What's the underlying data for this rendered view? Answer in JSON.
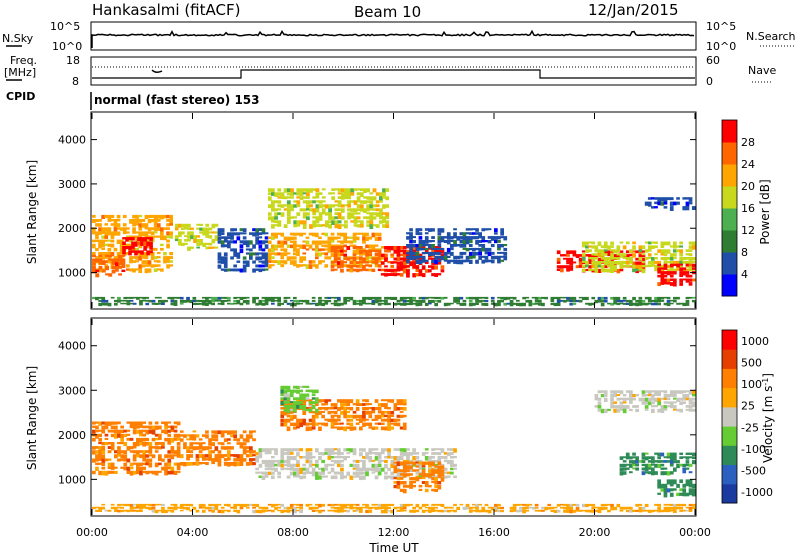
{
  "header": {
    "title": "Hankasalmi (fitACF)",
    "beam": "Beam 10",
    "date": "12/Jan/2015"
  },
  "top_panels": {
    "nsky_label": "N.Sky",
    "nsearch_label": "N.Search",
    "ticks_left_1": [
      "10^5",
      "10^0"
    ],
    "ticks_right_1": [
      "10^5",
      "10^0"
    ],
    "freq_label": "Freq.",
    "freq_unit": "[MHz]",
    "freq_ticks": [
      "18",
      "8"
    ],
    "nave_label": "Nave",
    "nave_ticks": [
      "60",
      "0"
    ],
    "cpid_label": "CPID",
    "cpid_value": "normal (fast stereo) 153"
  },
  "colors": {
    "power": [
      "#0000ff",
      "#1f4fa8",
      "#2e7d32",
      "#4caf50",
      "#c8d81c",
      "#ffa500",
      "#ff6600",
      "#ff0000"
    ],
    "velocity": [
      "#1a3aa0",
      "#2b5fc0",
      "#2e8b57",
      "#66cc33",
      "#c8c8c0",
      "#ffa500",
      "#ff7f00",
      "#e64000",
      "#ff0000"
    ]
  },
  "chart_data": [
    {
      "type": "heatmap",
      "name": "power",
      "ylabel": "Slant Range [km]",
      "ylim": [
        200,
        4600
      ],
      "yticks": [
        "4000",
        "3000",
        "2000",
        "1000"
      ],
      "xlim": [
        0,
        24
      ],
      "colorbar_label": "Power [dB]",
      "colorbar_ticks": [
        "28",
        "24",
        "20",
        "16",
        "12",
        "8",
        "4"
      ],
      "regions": [
        {
          "t0": 0.0,
          "t1": 3.2,
          "r0": 1000,
          "r1": 2300,
          "level": 5
        },
        {
          "t0": 1.2,
          "t1": 2.4,
          "r0": 1400,
          "r1": 1800,
          "level": 7
        },
        {
          "t0": 0.0,
          "t1": 1.3,
          "r0": 900,
          "r1": 1400,
          "level": 6
        },
        {
          "t0": 3.3,
          "t1": 5.0,
          "r0": 1500,
          "r1": 2100,
          "level": 4
        },
        {
          "t0": 5.0,
          "t1": 7.0,
          "r0": 1000,
          "r1": 2000,
          "level": 1
        },
        {
          "t0": 7.0,
          "t1": 11.8,
          "r0": 2000,
          "r1": 2900,
          "level": 4
        },
        {
          "t0": 7.0,
          "t1": 11.5,
          "r0": 1100,
          "r1": 1900,
          "level": 5
        },
        {
          "t0": 9.5,
          "t1": 13.0,
          "r0": 1000,
          "r1": 1600,
          "level": 6
        },
        {
          "t0": 11.5,
          "t1": 14.0,
          "r0": 900,
          "r1": 1600,
          "level": 7
        },
        {
          "t0": 12.5,
          "t1": 16.5,
          "r0": 1200,
          "r1": 2000,
          "level": 1
        },
        {
          "t0": 18.5,
          "t1": 22.0,
          "r0": 1000,
          "r1": 1500,
          "level": 7
        },
        {
          "t0": 19.5,
          "t1": 24.0,
          "r0": 1000,
          "r1": 1700,
          "level": 4
        },
        {
          "t0": 22.5,
          "t1": 24.0,
          "r0": 700,
          "r1": 1200,
          "level": 7
        },
        {
          "t0": 22.0,
          "t1": 24.0,
          "r0": 2400,
          "r1": 2700,
          "level": 1
        },
        {
          "t0": 0.0,
          "t1": 24.0,
          "r0": 250,
          "r1": 450,
          "level": 2
        }
      ]
    },
    {
      "type": "heatmap",
      "name": "velocity",
      "ylabel": "Slant Range [km]",
      "ylim": [
        200,
        4600
      ],
      "yticks": [
        "4000",
        "3000",
        "2000",
        "1000"
      ],
      "xlim": [
        0,
        24
      ],
      "xticks": [
        "00:00",
        "04:00",
        "08:00",
        "12:00",
        "16:00",
        "20:00",
        "00:00"
      ],
      "xlabel": "Time UT",
      "colorbar_label": "Velocity [m s",
      "colorbar_label_sup": "-1",
      "colorbar_label_end": "]",
      "colorbar_ticks": [
        "1000",
        "500",
        "100",
        "25",
        "-25",
        "-100",
        "-500",
        "-1000"
      ],
      "regions": [
        {
          "t0": 0.0,
          "t1": 3.5,
          "r0": 1100,
          "r1": 2300,
          "level": 6
        },
        {
          "t0": 3.5,
          "t1": 6.5,
          "r0": 1300,
          "r1": 2100,
          "level": 6
        },
        {
          "t0": 6.5,
          "t1": 14.5,
          "r0": 1000,
          "r1": 1700,
          "level": 4
        },
        {
          "t0": 7.5,
          "t1": 12.5,
          "r0": 2100,
          "r1": 2800,
          "level": 6
        },
        {
          "t0": 7.5,
          "t1": 9.0,
          "r0": 2500,
          "r1": 3100,
          "level": 3
        },
        {
          "t0": 12.0,
          "t1": 14.0,
          "r0": 700,
          "r1": 1400,
          "level": 6
        },
        {
          "t0": 20.0,
          "t1": 24.0,
          "r0": 2500,
          "r1": 3000,
          "level": 4
        },
        {
          "t0": 21.0,
          "t1": 24.0,
          "r0": 1100,
          "r1": 1600,
          "level": 2
        },
        {
          "t0": 22.5,
          "t1": 24.0,
          "r0": 600,
          "r1": 1000,
          "level": 2
        },
        {
          "t0": 0.0,
          "t1": 24.0,
          "r0": 250,
          "r1": 450,
          "level": 5
        }
      ]
    }
  ]
}
